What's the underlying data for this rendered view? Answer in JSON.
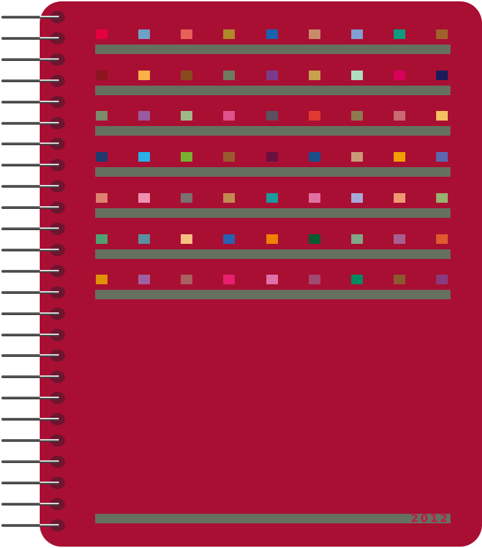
{
  "cover": {
    "color": "#a90f33",
    "year": "2012",
    "bar_color": "#65705f",
    "binding": "spiral-wire",
    "ring_count": 25,
    "swatch_rows": [
      [
        "#e4003f",
        "#6fa0c8",
        "#e8605a",
        "#b08a2a",
        "#1862ae",
        "#c98a6a",
        "#7fa0d0",
        "#0e9a80",
        "#a0622a"
      ],
      [
        "#8c1520",
        "#fbb048",
        "#8a4a1e",
        "#6e7a60",
        "#7c3a8a",
        "#c8a050",
        "#b0dcc0",
        "#d8005a",
        "#1c1c5a"
      ],
      [
        "#7e8a6a",
        "#9a5aa0",
        "#a0b888",
        "#e0508a",
        "#5a5060",
        "#e03a32",
        "#8e7a50",
        "#c86a70",
        "#f4c060"
      ],
      [
        "#1e3a6e",
        "#28b0e8",
        "#7ab030",
        "#9a5a30",
        "#6a1040",
        "#1a4e8a",
        "#c89a78",
        "#f0a000",
        "#5a68b0"
      ],
      [
        "#e08070",
        "#f090b0",
        "#7a7070",
        "#c08a50",
        "#1a9a9a",
        "#e070a0",
        "#a8a8d8",
        "#f09870",
        "#9ab070"
      ],
      [
        "#50a070",
        "#5a90a0",
        "#f8c080",
        "#2a60b0",
        "#f08000",
        "#0a5a30",
        "#80a888",
        "#a86090",
        "#e05a30"
      ],
      [
        "#e09000",
        "#a060a0",
        "#a86060",
        "#e81e70",
        "#e070a8",
        "#a04a70",
        "#008a60",
        "#8a5a30",
        "#8a3a80"
      ]
    ]
  }
}
